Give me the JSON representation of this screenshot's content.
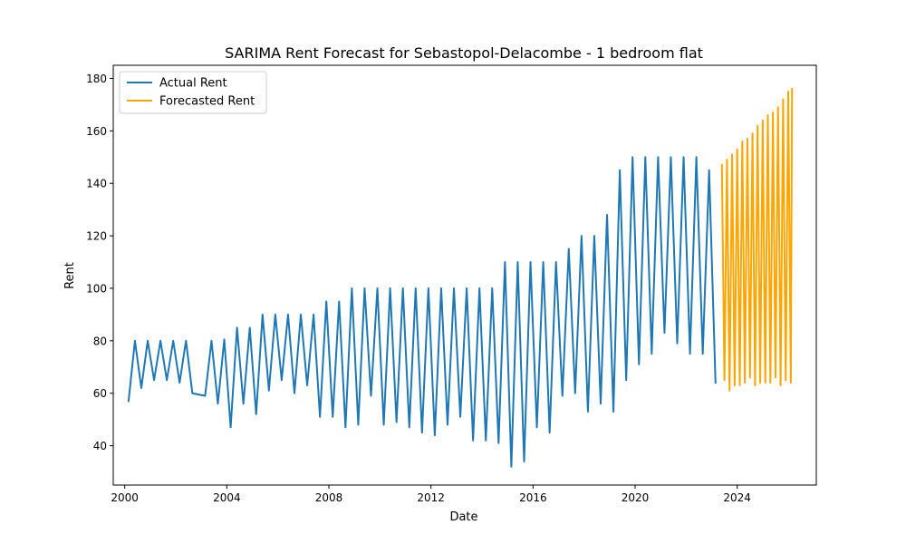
{
  "chart_data": {
    "type": "line",
    "title": "SARIMA Rent Forecast for Sebastopol-Delacombe - 1 bedroom flat",
    "xlabel": "Date",
    "ylabel": "Rent",
    "x_tick_labels": [
      "2000",
      "2004",
      "2008",
      "2012",
      "2016",
      "2020",
      "2024"
    ],
    "y_tick_labels": [
      "40",
      "60",
      "80",
      "100",
      "120",
      "140",
      "160",
      "180"
    ],
    "xlim": [
      1999.55,
      2027.1
    ],
    "ylim": [
      25.0,
      185.0
    ],
    "grid": false,
    "legend_position": "top-left",
    "series": [
      {
        "name": "Actual Rent",
        "color": "#1f77b4",
        "x": [
          2000.15,
          2000.4,
          2000.65,
          2000.9,
          2001.15,
          2001.4,
          2001.65,
          2001.9,
          2002.15,
          2002.4,
          2002.65,
          2003.15,
          2003.4,
          2003.65,
          2003.9,
          2004.15,
          2004.4,
          2004.65,
          2004.9,
          2005.15,
          2005.4,
          2005.65,
          2005.9,
          2006.15,
          2006.4,
          2006.65,
          2006.9,
          2007.15,
          2007.4,
          2007.65,
          2007.9,
          2008.15,
          2008.4,
          2008.65,
          2008.9,
          2009.15,
          2009.4,
          2009.65,
          2009.9,
          2010.15,
          2010.4,
          2010.65,
          2010.9,
          2011.15,
          2011.4,
          2011.65,
          2011.9,
          2012.15,
          2012.4,
          2012.65,
          2012.9,
          2013.15,
          2013.4,
          2013.65,
          2013.9,
          2014.15,
          2014.4,
          2014.65,
          2014.9,
          2015.15,
          2015.4,
          2015.65,
          2015.9,
          2016.15,
          2016.4,
          2016.65,
          2016.9,
          2017.15,
          2017.4,
          2017.65,
          2017.9,
          2018.15,
          2018.4,
          2018.65,
          2018.9,
          2019.15,
          2019.4,
          2019.65,
          2019.9,
          2020.15,
          2020.4,
          2020.65,
          2020.9,
          2021.15,
          2021.4,
          2021.65,
          2021.9,
          2022.15,
          2022.4,
          2022.65,
          2022.9,
          2023.15
        ],
        "y": [
          57,
          80,
          62,
          80,
          65,
          80,
          65,
          80,
          64,
          80,
          60,
          59,
          80,
          56,
          80.5,
          47,
          85,
          56,
          85,
          52,
          90,
          61,
          90,
          65,
          90,
          60,
          90,
          63,
          90,
          51,
          95,
          51,
          95,
          47,
          100,
          48,
          100,
          59,
          100,
          48,
          100,
          49,
          100,
          47,
          100,
          45,
          100,
          44,
          100,
          48,
          100,
          51,
          100,
          42,
          100,
          42,
          100,
          41,
          110,
          32,
          110,
          34,
          110,
          47,
          110,
          45,
          110,
          59,
          115,
          60,
          120,
          53,
          120,
          56,
          128,
          53,
          145,
          65,
          150,
          71,
          150,
          75,
          150,
          83,
          150,
          79,
          150,
          75,
          150,
          75,
          145,
          64
        ]
      },
      {
        "name": "Forecasted Rent",
        "color": "#ffa500",
        "x": [
          2023.4,
          2023.5,
          2023.6,
          2023.7,
          2023.8,
          2023.9,
          2024.0,
          2024.1,
          2024.2,
          2024.3,
          2024.4,
          2024.5,
          2024.6,
          2024.7,
          2024.8,
          2024.9,
          2025.0,
          2025.1,
          2025.2,
          2025.3,
          2025.4,
          2025.5,
          2025.6,
          2025.7,
          2025.8,
          2025.9,
          2026.0,
          2026.1,
          2026.15
        ],
        "y": [
          147,
          65,
          149,
          61,
          151,
          63,
          153,
          63,
          156,
          64,
          157,
          66,
          159,
          63,
          162,
          64,
          164,
          64,
          166,
          64,
          167,
          66,
          169,
          63,
          172,
          65,
          175,
          64,
          176
        ]
      }
    ]
  }
}
